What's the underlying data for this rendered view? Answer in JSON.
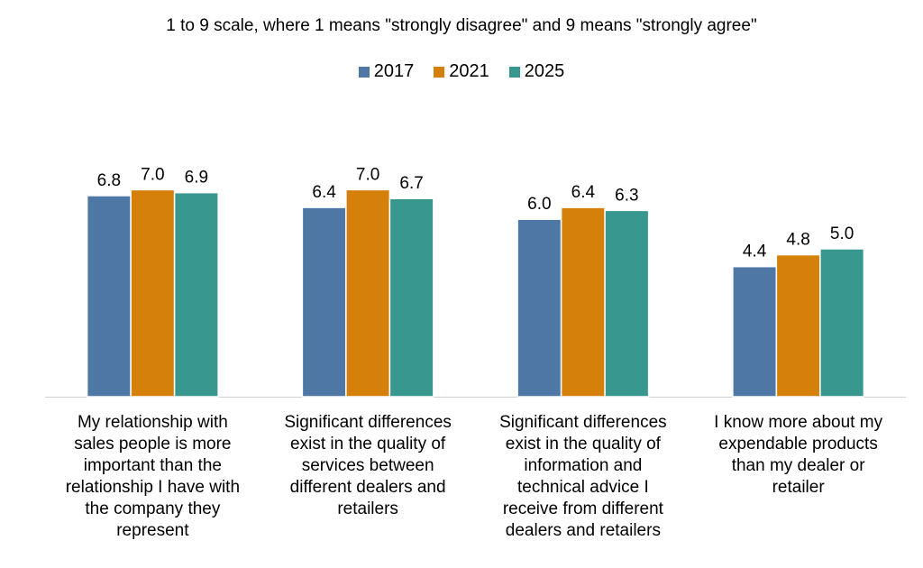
{
  "chart_data": {
    "type": "bar",
    "title": "1 to 9 scale, where 1 means \"strongly disagree\" and 9 means \"strongly agree\"",
    "xlabel": "",
    "ylabel": "",
    "ylim": [
      0,
      9
    ],
    "grid": false,
    "legend_position": "top-center",
    "categories": [
      [
        "My relationship with",
        "sales people is more",
        "important than the",
        "relationship I have with",
        "the company they",
        "represent"
      ],
      [
        "Significant differences",
        "exist in the quality of",
        "services between",
        "different dealers and",
        "retailers"
      ],
      [
        "Significant differences",
        "exist in the quality of",
        "information and",
        "technical advice I",
        "receive from different",
        "dealers and retailers"
      ],
      [
        "I know more about my",
        "expendable products",
        "than my dealer or",
        "retailer"
      ]
    ],
    "series": [
      {
        "name": "2017",
        "color": "#4E77A6",
        "values": [
          6.8,
          6.4,
          6.0,
          4.4
        ],
        "labels": [
          "6.8",
          "6.4",
          "6.0",
          "4.4"
        ]
      },
      {
        "name": "2021",
        "color": "#D4800A",
        "values": [
          7.0,
          7.0,
          6.4,
          4.8
        ],
        "labels": [
          "7.0",
          "7.0",
          "6.4",
          "4.8"
        ]
      },
      {
        "name": "2025",
        "color": "#38978F",
        "values": [
          6.9,
          6.7,
          6.3,
          5.0
        ],
        "labels": [
          "6.9",
          "6.7",
          "6.3",
          "5.0"
        ]
      }
    ]
  }
}
